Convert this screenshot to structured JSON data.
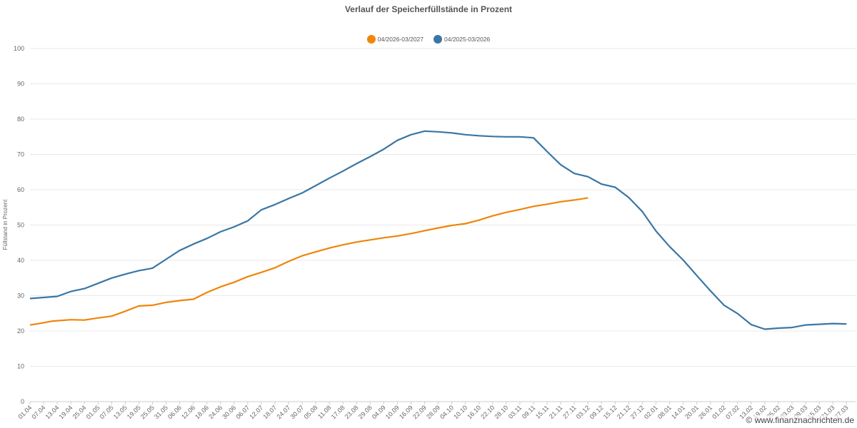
{
  "chart_data": {
    "type": "line",
    "title": "Verlauf der Speicherfüllstände in Prozent",
    "ylabel": "Füllstand in Prozent",
    "xlabel": "",
    "ylim": [
      0,
      100
    ],
    "yticks": [
      0,
      10,
      20,
      30,
      40,
      50,
      60,
      70,
      80,
      90,
      100
    ],
    "grid": true,
    "legend_position": "top-center",
    "x_tick_labels": [
      "01.04",
      "07.04",
      "13.04",
      "19.04",
      "25.04",
      "01.05",
      "07.05",
      "13.05",
      "19.05",
      "25.05",
      "31.05",
      "06.06",
      "12.06",
      "18.06",
      "24.06",
      "30.06",
      "06.07",
      "12.07",
      "18.07",
      "24.07",
      "30.07",
      "05.08",
      "11.08",
      "17.08",
      "23.08",
      "29.08",
      "04.09",
      "10.09",
      "16.09",
      "22.09",
      "28.09",
      "04.10",
      "10.10",
      "16.10",
      "22.10",
      "28.10",
      "03.11",
      "09.11",
      "15.11",
      "21.11",
      "27.11",
      "03.12",
      "09.12",
      "15.12",
      "21.12",
      "27.12",
      "02.01",
      "08.01",
      "14.01",
      "20.01",
      "26.01",
      "01.02",
      "07.02",
      "13.02",
      "19.02",
      "25.02",
      "03.03",
      "09.03",
      "15.03",
      "21.03",
      "27.03"
    ],
    "series": [
      {
        "name": "04/2026-03/2027",
        "color": "#f0850a",
        "days": [
          0,
          4,
          10,
          18,
          24,
          30,
          36,
          42,
          48,
          54,
          60,
          66,
          72,
          78,
          84,
          90,
          96,
          102,
          108,
          114,
          120,
          126,
          132,
          138,
          144,
          150,
          156,
          162,
          168,
          174,
          180,
          186,
          192,
          198,
          204,
          210,
          216,
          222,
          228,
          234,
          240,
          246,
          252,
          258,
          264,
          270,
          276,
          282,
          288,
          294,
          300,
          306,
          312,
          318,
          324,
          330,
          336,
          342,
          348,
          354,
          360
        ],
        "values": [
          21.7,
          22.1,
          22.8,
          23.2,
          23.1,
          23.7,
          24.2,
          25.6,
          27.1,
          27.3,
          28.1,
          28.6,
          29.0,
          30.9,
          32.5,
          33.8,
          35.4,
          36.6,
          37.9,
          39.7,
          41.3,
          42.4,
          43.5,
          44.4,
          45.2,
          45.8,
          46.4,
          46.9,
          47.6,
          48.4,
          49.2,
          49.9,
          50.4,
          51.4,
          52.6,
          53.6,
          54.4,
          55.3,
          55.9,
          56.6,
          57.1,
          57.7,
          null,
          null,
          null,
          null,
          null,
          null,
          null,
          null,
          null,
          null,
          null,
          null,
          null,
          null,
          null,
          null,
          null,
          null,
          null
        ]
      },
      {
        "name": "04/2025-03/2026",
        "color": "#3a76a4",
        "days": [
          0,
          6,
          12,
          18,
          24,
          30,
          36,
          42,
          48,
          54,
          60,
          66,
          72,
          78,
          84,
          90,
          96,
          102,
          108,
          114,
          120,
          126,
          132,
          138,
          144,
          150,
          156,
          162,
          168,
          174,
          180,
          186,
          192,
          198,
          204,
          210,
          216,
          222,
          228,
          234,
          240,
          246,
          252,
          258,
          264,
          270,
          276,
          282,
          288,
          294,
          300,
          306,
          312,
          318,
          324,
          330,
          336,
          342,
          348,
          354,
          360
        ],
        "values": [
          29.2,
          29.5,
          29.8,
          31.2,
          32.0,
          33.5,
          35.0,
          36.1,
          37.1,
          37.8,
          40.3,
          42.8,
          44.6,
          46.2,
          48.1,
          49.5,
          51.2,
          54.3,
          55.8,
          57.5,
          59.1,
          61.2,
          63.3,
          65.3,
          67.4,
          69.4,
          71.5,
          74.0,
          75.6,
          76.6,
          76.4,
          76.1,
          75.6,
          75.3,
          75.1,
          75.0,
          75.0,
          74.7,
          70.8,
          67.1,
          64.6,
          63.7,
          61.6,
          60.7,
          57.8,
          53.8,
          48.3,
          43.9,
          40.1,
          35.7,
          31.4,
          27.3,
          24.9,
          21.8,
          20.5,
          20.8,
          21.0,
          21.7,
          21.9,
          22.1,
          22.0
        ]
      }
    ]
  },
  "watermark": "© www.finanznachrichten.de"
}
